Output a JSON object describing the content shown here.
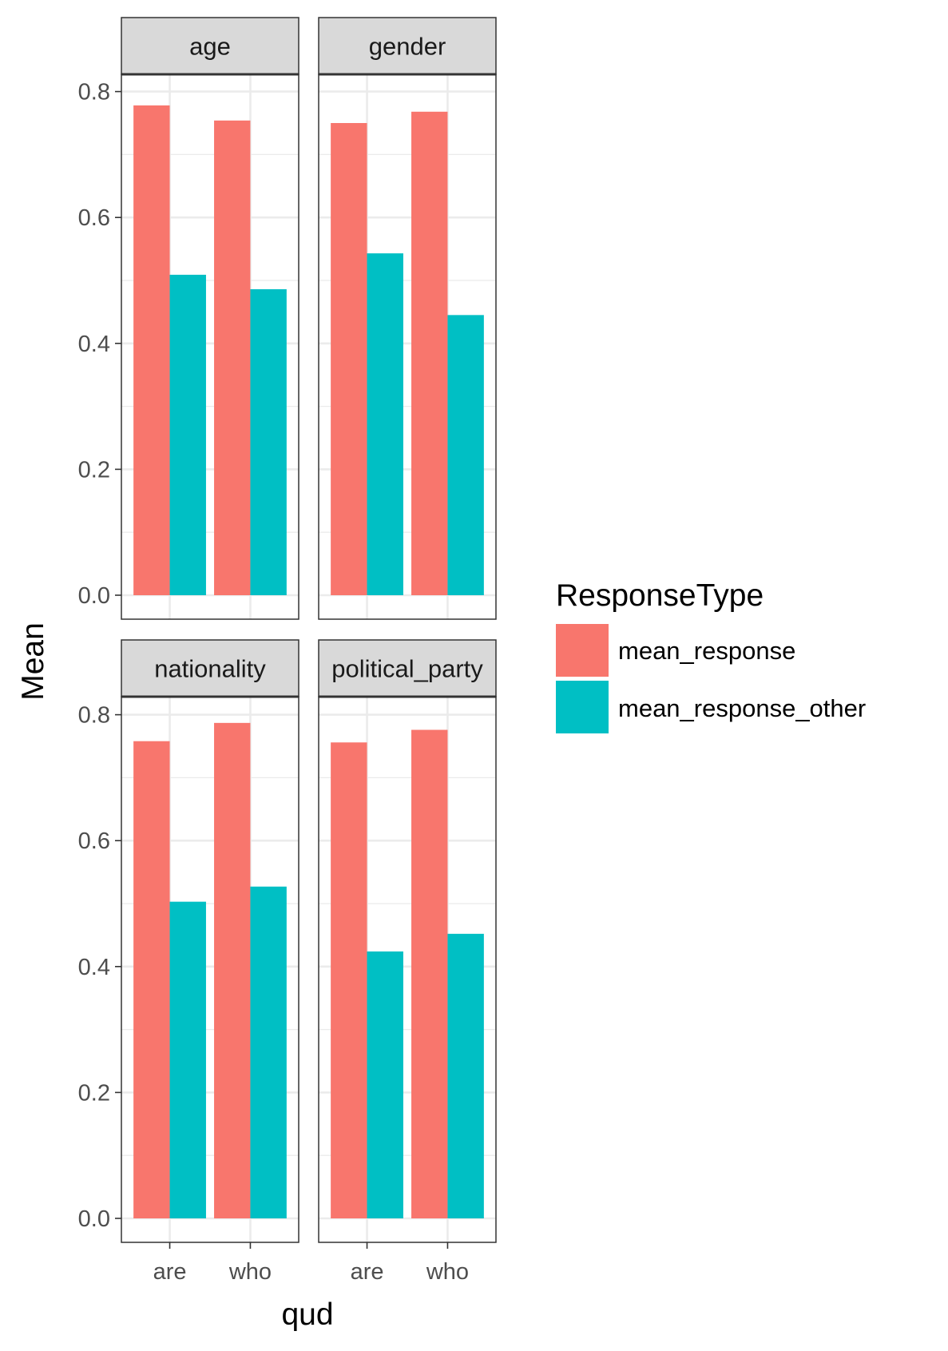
{
  "chart_data": {
    "type": "bar",
    "facet_by": "feature",
    "xlabel": "qud",
    "ylabel": "Mean",
    "categories": [
      "are",
      "who"
    ],
    "ylim": [
      0,
      0.85
    ],
    "yticks": [
      "0.0",
      "0.2",
      "0.4",
      "0.6",
      "0.8"
    ],
    "grid": true,
    "legend": {
      "title": "ResponseType",
      "placement": "right",
      "entries": [
        {
          "name": "mean_response",
          "color": "#F8766D"
        },
        {
          "name": "mean_response_other",
          "color": "#00BFC4"
        }
      ]
    },
    "facets": [
      {
        "label": "age",
        "series": [
          {
            "name": "mean_response",
            "values": [
              0.778,
              0.754
            ]
          },
          {
            "name": "mean_response_other",
            "values": [
              0.509,
              0.486
            ]
          }
        ]
      },
      {
        "label": "gender",
        "series": [
          {
            "name": "mean_response",
            "values": [
              0.75,
              0.768
            ]
          },
          {
            "name": "mean_response_other",
            "values": [
              0.543,
              0.445
            ]
          }
        ]
      },
      {
        "label": "nationality",
        "series": [
          {
            "name": "mean_response",
            "values": [
              0.758,
              0.787
            ]
          },
          {
            "name": "mean_response_other",
            "values": [
              0.503,
              0.527
            ]
          }
        ]
      },
      {
        "label": "political_party",
        "series": [
          {
            "name": "mean_response",
            "values": [
              0.756,
              0.776
            ]
          },
          {
            "name": "mean_response_other",
            "values": [
              0.424,
              0.452
            ]
          }
        ]
      }
    ]
  }
}
